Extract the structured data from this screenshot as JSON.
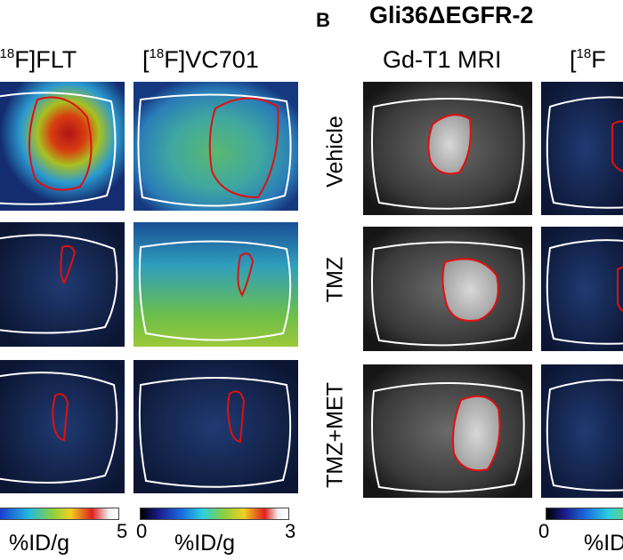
{
  "panel_b": {
    "letter": "B",
    "title": "Gli36ΔEGFR-2"
  },
  "columns": [
    {
      "id": "flt",
      "prefix": "[",
      "sup": "18",
      "suffix": "F]FLT"
    },
    {
      "id": "vc701",
      "prefix": "[",
      "sup": "18",
      "suffix": "F]VC701"
    },
    {
      "id": "mri",
      "text": "Gd-T1 MRI"
    },
    {
      "id": "pet_b",
      "prefix": "[",
      "sup": "18",
      "suffix": "F"
    }
  ],
  "row_labels": [
    "Vehicle",
    "TMZ",
    "TMZ+MET"
  ],
  "colorbars": [
    {
      "id": "cb1",
      "min_label": "",
      "max_label": "5",
      "unit": "%ID/g"
    },
    {
      "id": "cb2",
      "min_label": "0",
      "max_label": "3",
      "unit": "%ID/g"
    },
    {
      "id": "cb3",
      "min_label": "0",
      "max_label": "",
      "unit": "%ID"
    }
  ],
  "colors": {
    "outline_brain": "#ffffff",
    "outline_tumor": "#e01010",
    "background": "#ffffff"
  }
}
